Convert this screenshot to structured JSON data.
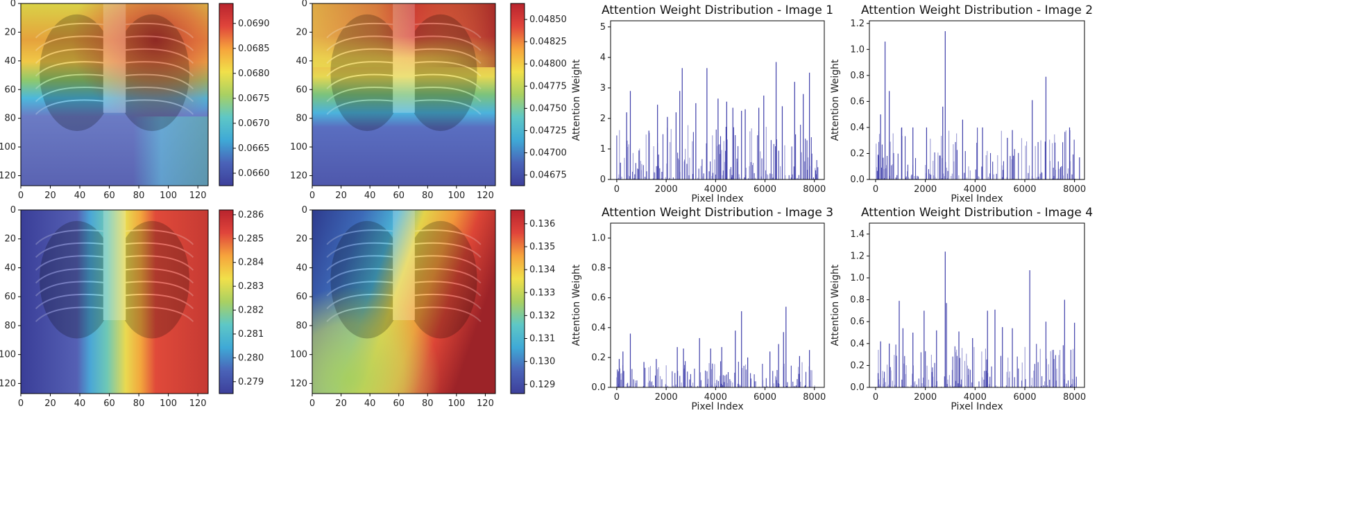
{
  "heatmaps": [
    {
      "id": "heat-1",
      "xticks": [
        "0",
        "20",
        "40",
        "60",
        "80",
        "100",
        "120"
      ],
      "yticks": [
        "0",
        "20",
        "40",
        "60",
        "80",
        "100",
        "120"
      ],
      "xrange": [
        0,
        127
      ],
      "yrange": [
        0,
        127
      ],
      "colorbar_ticks": [
        "0.0660",
        "0.0665",
        "0.0670",
        "0.0675",
        "0.0680",
        "0.0685",
        "0.0690"
      ],
      "colorbar_range": [
        0.06575,
        0.0694
      ],
      "pattern": "top-warm-right-hot-bottom-cool"
    },
    {
      "id": "heat-2",
      "xticks": [
        "0",
        "20",
        "40",
        "60",
        "80",
        "100",
        "120"
      ],
      "yticks": [
        "0",
        "20",
        "40",
        "60",
        "80",
        "100",
        "120"
      ],
      "xrange": [
        0,
        127
      ],
      "yrange": [
        0,
        127
      ],
      "colorbar_ticks": [
        "0.04675",
        "0.04700",
        "0.04725",
        "0.04750",
        "0.04775",
        "0.04800",
        "0.04825",
        "0.04850"
      ],
      "colorbar_range": [
        0.04663,
        0.04868
      ],
      "pattern": "top-warm-band-bottom-cool"
    },
    {
      "id": "heat-3",
      "xticks": [
        "0",
        "20",
        "40",
        "60",
        "80",
        "100",
        "120"
      ],
      "yticks": [
        "0",
        "20",
        "40",
        "60",
        "80",
        "100",
        "120"
      ],
      "xrange": [
        0,
        127
      ],
      "yrange": [
        0,
        127
      ],
      "colorbar_ticks": [
        "0.279",
        "0.280",
        "0.281",
        "0.282",
        "0.283",
        "0.284",
        "0.285",
        "0.286"
      ],
      "colorbar_range": [
        0.2785,
        0.2862
      ],
      "pattern": "left-cool-right-hot"
    },
    {
      "id": "heat-4",
      "xticks": [
        "0",
        "20",
        "40",
        "60",
        "80",
        "100",
        "120"
      ],
      "yticks": [
        "0",
        "20",
        "40",
        "60",
        "80",
        "100",
        "120"
      ],
      "xrange": [
        0,
        127
      ],
      "yrange": [
        0,
        127
      ],
      "colorbar_ticks": [
        "0.129",
        "0.130",
        "0.131",
        "0.132",
        "0.133",
        "0.134",
        "0.135",
        "0.136"
      ],
      "colorbar_range": [
        0.1286,
        0.1366
      ],
      "pattern": "upper-left-cool-right-hot"
    }
  ],
  "chart_data": [
    {
      "type": "bar",
      "title": "Attention Weight Distribution - Image 1",
      "xlabel": "Pixel Index",
      "ylabel": "Attention Weight",
      "xlim": [
        -250,
        8400
      ],
      "ylim": [
        0,
        5.2
      ],
      "xticks": [
        0,
        2000,
        4000,
        6000,
        8000
      ],
      "yticks": [
        0,
        1,
        2,
        3,
        4,
        5
      ],
      "peaks": [
        [
          150,
          0.55
        ],
        [
          400,
          2.2
        ],
        [
          550,
          2.9
        ],
        [
          900,
          0.95
        ],
        [
          1300,
          1.6
        ],
        [
          1650,
          2.45
        ],
        [
          2050,
          2.05
        ],
        [
          2400,
          2.2
        ],
        [
          2550,
          2.9
        ],
        [
          2650,
          3.65
        ],
        [
          3200,
          2.5
        ],
        [
          3650,
          3.65
        ],
        [
          4100,
          2.65
        ],
        [
          4450,
          2.55
        ],
        [
          4700,
          2.35
        ],
        [
          5050,
          2.25
        ],
        [
          5200,
          2.3
        ],
        [
          5750,
          2.35
        ],
        [
          5950,
          2.75
        ],
        [
          6450,
          3.85
        ],
        [
          6700,
          2.4
        ],
        [
          7200,
          3.2
        ],
        [
          7550,
          2.8
        ],
        [
          7800,
          3.5
        ],
        [
          8050,
          0.3
        ]
      ],
      "base_max": 1.8,
      "seed": 11
    },
    {
      "type": "bar",
      "title": "Attention Weight Distribution - Image 2",
      "xlabel": "Pixel Index",
      "ylabel": "Attention Weight",
      "xlim": [
        -250,
        8400
      ],
      "ylim": [
        0,
        1.22
      ],
      "xticks": [
        0,
        2000,
        4000,
        6000,
        8000
      ],
      "yticks": [
        0,
        0.2,
        0.4,
        0.6,
        0.8,
        1.0,
        1.2
      ],
      "peaks": [
        [
          100,
          0.19
        ],
        [
          200,
          0.5
        ],
        [
          380,
          1.06
        ],
        [
          550,
          0.68
        ],
        [
          1050,
          0.4
        ],
        [
          1500,
          0.4
        ],
        [
          2050,
          0.4
        ],
        [
          2700,
          0.56
        ],
        [
          2800,
          1.14
        ],
        [
          3500,
          0.46
        ],
        [
          4300,
          0.4
        ],
        [
          5300,
          0.32
        ],
        [
          5500,
          0.38
        ],
        [
          6300,
          0.61
        ],
        [
          6850,
          0.79
        ],
        [
          7800,
          0.4
        ],
        [
          8200,
          0.17
        ]
      ],
      "base_max": 0.4,
      "seed": 23
    },
    {
      "type": "bar",
      "title": "Attention Weight Distribution - Image 3",
      "xlabel": "Pixel Index",
      "ylabel": "Attention Weight",
      "xlim": [
        -250,
        8400
      ],
      "ylim": [
        0,
        1.1
      ],
      "xticks": [
        0,
        2000,
        4000,
        6000,
        8000
      ],
      "yticks": [
        0,
        0.2,
        0.4,
        0.6,
        0.8,
        1.0
      ],
      "peaks": [
        [
          100,
          0.19
        ],
        [
          250,
          0.24
        ],
        [
          550,
          0.36
        ],
        [
          1100,
          0.17
        ],
        [
          1600,
          0.19
        ],
        [
          2450,
          0.27
        ],
        [
          2700,
          0.26
        ],
        [
          3350,
          0.33
        ],
        [
          3800,
          0.26
        ],
        [
          4250,
          0.27
        ],
        [
          4800,
          0.38
        ],
        [
          5050,
          0.51
        ],
        [
          5300,
          0.2
        ],
        [
          6200,
          0.24
        ],
        [
          6550,
          0.29
        ],
        [
          6750,
          0.37
        ],
        [
          6850,
          0.54
        ],
        [
          7400,
          0.21
        ],
        [
          7800,
          0.25
        ]
      ],
      "base_max": 0.18,
      "seed": 37
    },
    {
      "type": "bar",
      "title": "Attention Weight Distribution - Image 4",
      "xlabel": "Pixel Index",
      "ylabel": "Attention Weight",
      "xlim": [
        -250,
        8400
      ],
      "ylim": [
        0,
        1.5
      ],
      "xticks": [
        0,
        2000,
        4000,
        6000,
        8000
      ],
      "yticks": [
        0,
        0.2,
        0.4,
        0.6,
        0.8,
        1.0,
        1.2,
        1.4
      ],
      "peaks": [
        [
          100,
          0.13
        ],
        [
          200,
          0.42
        ],
        [
          550,
          0.4
        ],
        [
          950,
          0.79
        ],
        [
          1100,
          0.54
        ],
        [
          1500,
          0.5
        ],
        [
          1950,
          0.7
        ],
        [
          2450,
          0.52
        ],
        [
          2800,
          1.24
        ],
        [
          2850,
          0.77
        ],
        [
          3350,
          0.51
        ],
        [
          3900,
          0.45
        ],
        [
          4500,
          0.7
        ],
        [
          4800,
          0.71
        ],
        [
          5100,
          0.55
        ],
        [
          5500,
          0.54
        ],
        [
          6200,
          1.07
        ],
        [
          6850,
          0.6
        ],
        [
          7600,
          0.8
        ],
        [
          8000,
          0.59
        ]
      ],
      "base_max": 0.4,
      "seed": 51
    }
  ]
}
